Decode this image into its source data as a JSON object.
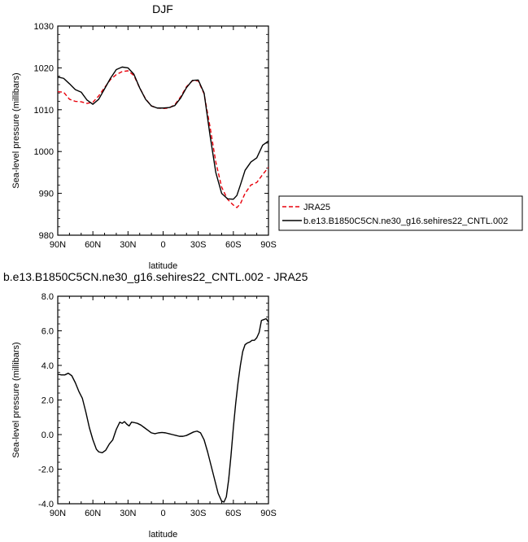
{
  "chart_data": [
    {
      "type": "line",
      "title": "DJF",
      "xlabel": "latitude",
      "ylabel": "Sea-level pressure (millibars)",
      "xlim": [
        90,
        -90
      ],
      "ylim": [
        980,
        1030
      ],
      "x_tick_values": [
        90,
        60,
        30,
        0,
        -30,
        -60,
        -90
      ],
      "x_tick_labels": [
        "90N",
        "60N",
        "30N",
        "0",
        "30S",
        "60S",
        "90S"
      ],
      "y_tick_values": [
        980,
        990,
        1000,
        1010,
        1020,
        1030
      ],
      "y_tick_labels": [
        "980",
        "990",
        "1000",
        "1010",
        "1020",
        "1030"
      ],
      "grid": false,
      "legend_position": "right",
      "series": [
        {
          "name": "JRA25",
          "color": "#e8000b",
          "dash": "dashed",
          "x": [
            90,
            85,
            80,
            75,
            70,
            65,
            60,
            55,
            50,
            45,
            40,
            35,
            30,
            25,
            20,
            15,
            10,
            5,
            0,
            -5,
            -10,
            -15,
            -20,
            -25,
            -30,
            -35,
            -40,
            -45,
            -50,
            -55,
            -60,
            -63,
            -66,
            -70,
            -75,
            -80,
            -85,
            -90
          ],
          "y": [
            1014.3,
            1014.2,
            1012.5,
            1012.0,
            1011.9,
            1011.5,
            1011.8,
            1013.3,
            1015.3,
            1017.2,
            1018.4,
            1019.1,
            1019.3,
            1018.2,
            1015.2,
            1012.6,
            1010.9,
            1010.4,
            1010.3,
            1010.4,
            1011.2,
            1013.1,
            1015.5,
            1016.9,
            1016.9,
            1013.8,
            1006.0,
            997.5,
            991.5,
            988.6,
            987.2,
            986.6,
            987.5,
            990.0,
            992.0,
            992.6,
            994.5,
            996.2
          ]
        },
        {
          "name": "b.e13.B1850C5CN.ne30_g16.sehires22_CNTL.002",
          "color": "#000000",
          "dash": "solid",
          "x": [
            90,
            85,
            80,
            75,
            70,
            65,
            60,
            55,
            50,
            45,
            40,
            35,
            30,
            25,
            20,
            15,
            10,
            5,
            0,
            -5,
            -10,
            -15,
            -20,
            -25,
            -30,
            -35,
            -40,
            -45,
            -50,
            -55,
            -60,
            -63,
            -66,
            -70,
            -75,
            -80,
            -85,
            -90
          ],
          "y": [
            1017.8,
            1017.5,
            1016.2,
            1014.8,
            1014.2,
            1012.3,
            1011.3,
            1012.5,
            1015.0,
            1017.5,
            1019.6,
            1020.2,
            1020.0,
            1018.5,
            1015.2,
            1012.5,
            1010.9,
            1010.4,
            1010.4,
            1010.5,
            1011.0,
            1012.8,
            1015.3,
            1017.0,
            1017.1,
            1014.0,
            1004.0,
            995.0,
            990.0,
            988.7,
            988.6,
            989.5,
            992.0,
            995.5,
            997.5,
            998.5,
            1001.5,
            1002.5
          ]
        }
      ]
    },
    {
      "type": "line",
      "title": "b.e13.B1850C5CN.ne30_g16.sehires22_CNTL.002 - JRA25",
      "xlabel": "latitude",
      "ylabel": "Sea-level pressure (millibars)",
      "xlim": [
        90,
        -90
      ],
      "ylim": [
        -4,
        8
      ],
      "x_tick_values": [
        90,
        60,
        30,
        0,
        -30,
        -60,
        -90
      ],
      "x_tick_labels": [
        "90N",
        "60N",
        "30N",
        "0",
        "30S",
        "60S",
        "90S"
      ],
      "y_tick_values": [
        -4,
        -2,
        0,
        2,
        4,
        6,
        8
      ],
      "y_tick_labels": [
        "-4.0",
        "-2.0",
        "0.0",
        "2.0",
        "4.0",
        "6.0",
        "8.0"
      ],
      "grid": false,
      "series": [
        {
          "color": "#000000",
          "dash": "solid",
          "x": [
            90,
            87,
            84,
            81,
            78,
            75,
            72,
            69,
            66,
            63,
            60,
            57,
            55,
            52,
            49,
            46,
            43,
            40,
            37,
            35,
            33,
            31,
            29,
            27,
            25,
            22,
            19,
            16,
            13,
            10,
            7,
            4,
            1,
            -2,
            -5,
            -8,
            -11,
            -14,
            -17,
            -20,
            -23,
            -26,
            -29,
            -32,
            -35,
            -38,
            -41,
            -44,
            -47,
            -50,
            -52,
            -54,
            -56,
            -58,
            -60,
            -62,
            -64,
            -66,
            -68,
            -70,
            -72,
            -74,
            -76,
            -78,
            -80,
            -82,
            -84,
            -86,
            -88,
            -90
          ],
          "y": [
            3.5,
            3.45,
            3.45,
            3.55,
            3.4,
            3.0,
            2.5,
            2.1,
            1.3,
            0.4,
            -0.3,
            -0.85,
            -1.0,
            -1.05,
            -0.9,
            -0.55,
            -0.3,
            0.3,
            0.72,
            0.65,
            0.75,
            0.6,
            0.5,
            0.72,
            0.7,
            0.65,
            0.55,
            0.4,
            0.25,
            0.1,
            0.05,
            0.1,
            0.12,
            0.1,
            0.05,
            0.0,
            -0.05,
            -0.1,
            -0.1,
            -0.05,
            0.05,
            0.15,
            0.2,
            0.1,
            -0.3,
            -1.0,
            -1.8,
            -2.6,
            -3.4,
            -3.85,
            -3.9,
            -3.6,
            -2.6,
            -1.2,
            0.4,
            1.8,
            3.0,
            4.0,
            4.8,
            5.2,
            5.3,
            5.35,
            5.45,
            5.45,
            5.6,
            5.9,
            6.6,
            6.65,
            6.7,
            6.5
          ]
        }
      ]
    }
  ]
}
